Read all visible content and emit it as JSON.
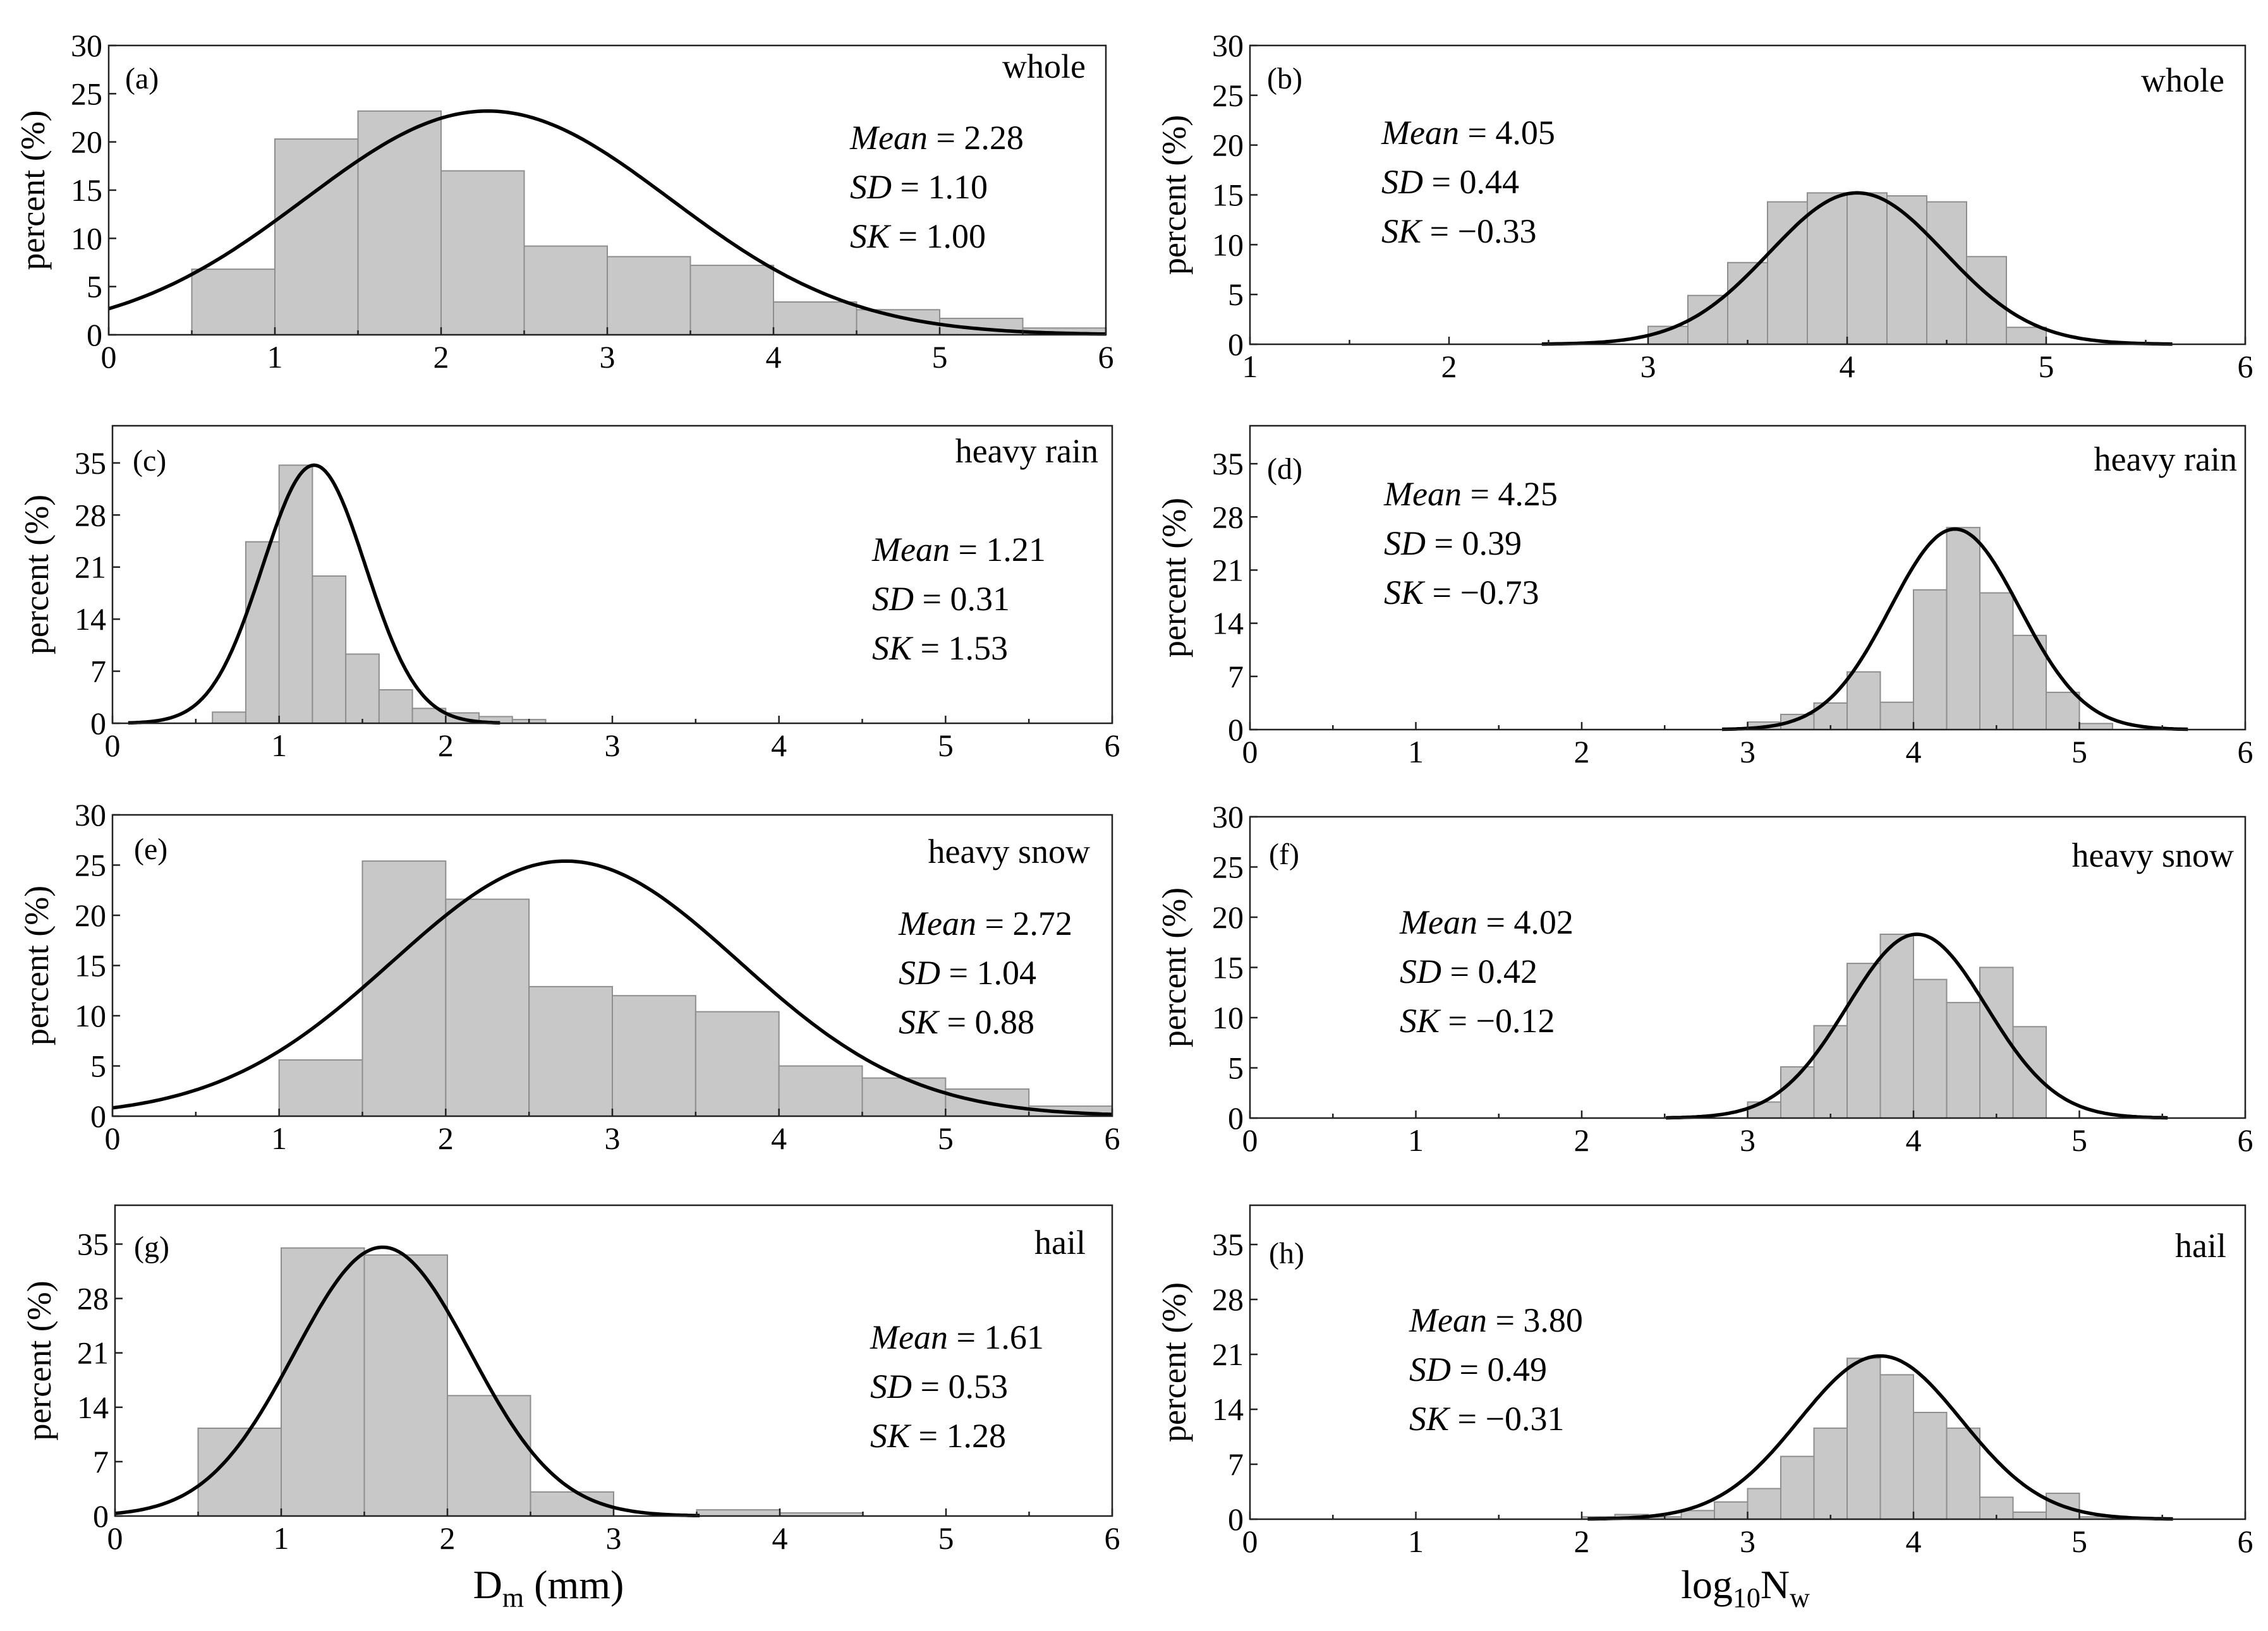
{
  "chart_data": [
    {
      "id": "a",
      "panel_label": "(a)",
      "category": "whole",
      "type": "bar",
      "title": "",
      "xlabel": "",
      "ylabel": "percent (%)",
      "xlim": [
        0,
        6
      ],
      "ylim": [
        0,
        30
      ],
      "xticks": [
        "0",
        "1",
        "2",
        "3",
        "4",
        "5",
        "6"
      ],
      "yticks": [
        "0",
        "5",
        "10",
        "15",
        "20",
        "25",
        "30"
      ],
      "bins": [
        [
          0.5,
          1.0
        ],
        [
          1.0,
          1.5
        ],
        [
          1.5,
          2.0
        ],
        [
          2.0,
          2.5
        ],
        [
          2.5,
          3.0
        ],
        [
          3.0,
          3.5
        ],
        [
          3.5,
          4.0
        ],
        [
          4.0,
          4.5
        ],
        [
          4.5,
          5.0
        ],
        [
          5.0,
          5.5
        ],
        [
          5.5,
          6.0
        ]
      ],
      "values": [
        6.8,
        20.3,
        23.2,
        17.0,
        9.2,
        8.1,
        7.2,
        3.4,
        2.6,
        1.7,
        0.7
      ],
      "fit": {
        "mean": 2.28,
        "sd": 1.1,
        "peak": 23.2
      },
      "stats": {
        "mean_label": "Mean",
        "mean": "= 2.28",
        "sd_label": "SD",
        "sd": "= 1.10",
        "sk_label": "SK",
        "sk": "= 1.00"
      }
    },
    {
      "id": "b",
      "panel_label": "(b)",
      "category": "whole",
      "type": "bar",
      "title": "",
      "xlabel": "",
      "ylabel": "percent (%)",
      "xlim": [
        1,
        6
      ],
      "ylim": [
        0,
        30
      ],
      "xticks": [
        "1",
        "2",
        "3",
        "4",
        "5",
        "6"
      ],
      "yticks": [
        "0",
        "5",
        "10",
        "15",
        "20",
        "25",
        "30"
      ],
      "bins": [
        [
          3.0,
          3.2
        ],
        [
          3.2,
          3.4
        ],
        [
          3.4,
          3.6
        ],
        [
          3.6,
          3.8
        ],
        [
          3.8,
          4.0
        ],
        [
          4.0,
          4.2
        ],
        [
          4.2,
          4.4
        ],
        [
          4.4,
          4.6
        ],
        [
          4.6,
          4.8
        ],
        [
          4.8,
          5.0
        ]
      ],
      "values": [
        1.8,
        4.9,
        8.2,
        14.3,
        15.2,
        15.2,
        14.9,
        14.3,
        8.8,
        1.7
      ],
      "fit": {
        "mean": 4.05,
        "sd": 0.44,
        "peak": 15.2
      },
      "stats": {
        "mean_label": "Mean",
        "mean": "= 4.05",
        "sd_label": "SD",
        "sd": "= 0.44",
        "sk_label": "SK",
        "sk": "= −0.33"
      }
    },
    {
      "id": "c",
      "panel_label": "(c)",
      "category": "heavy rain",
      "type": "bar",
      "title": "",
      "xlabel": "",
      "ylabel": "percent (%)",
      "xlim": [
        0,
        6
      ],
      "ylim": [
        0,
        40
      ],
      "xticks": [
        "0",
        "1",
        "2",
        "3",
        "4",
        "5",
        "6"
      ],
      "yticks": [
        "0",
        "7",
        "14",
        "21",
        "28",
        "35"
      ],
      "bins": [
        [
          0.6,
          0.8
        ],
        [
          0.8,
          1.0
        ],
        [
          1.0,
          1.2
        ],
        [
          1.2,
          1.4
        ],
        [
          1.4,
          1.6
        ],
        [
          1.6,
          1.8
        ],
        [
          1.8,
          2.0
        ],
        [
          2.0,
          2.2
        ],
        [
          2.2,
          2.4
        ],
        [
          2.4,
          2.6
        ]
      ],
      "values": [
        1.5,
        24.4,
        34.7,
        19.8,
        9.3,
        4.5,
        2.0,
        1.4,
        0.9,
        0.5
      ],
      "fit": {
        "mean": 1.21,
        "sd": 0.31,
        "peak": 34.7
      },
      "stats": {
        "mean_label": "Mean",
        "mean": "= 1.21",
        "sd_label": "SD",
        "sd": "= 0.31",
        "sk_label": "SK",
        "sk": "= 1.53"
      }
    },
    {
      "id": "d",
      "panel_label": "(d)",
      "category": "heavy rain",
      "type": "bar",
      "title": "",
      "xlabel": "",
      "ylabel": "percent (%)",
      "xlim": [
        0,
        6
      ],
      "ylim": [
        0,
        40
      ],
      "xticks": [
        "0",
        "1",
        "2",
        "3",
        "4",
        "5",
        "6"
      ],
      "yticks": [
        "0",
        "7",
        "14",
        "21",
        "28",
        "35"
      ],
      "bins": [
        [
          3.0,
          3.2
        ],
        [
          3.2,
          3.4
        ],
        [
          3.4,
          3.6
        ],
        [
          3.6,
          3.8
        ],
        [
          3.8,
          4.0
        ],
        [
          4.0,
          4.2
        ],
        [
          4.2,
          4.4
        ],
        [
          4.4,
          4.6
        ],
        [
          4.6,
          4.8
        ],
        [
          4.8,
          5.0
        ],
        [
          5.0,
          5.2
        ]
      ],
      "values": [
        1.0,
        2.0,
        3.5,
        7.6,
        3.6,
        18.4,
        26.6,
        18.0,
        12.4,
        4.9,
        0.8
      ],
      "fit": {
        "mean": 4.25,
        "sd": 0.39,
        "peak": 26.4
      },
      "stats": {
        "mean_label": "Mean",
        "mean": "= 4.25",
        "sd_label": "SD",
        "sd": "= 0.39",
        "sk_label": "SK",
        "sk": "= −0.73"
      }
    },
    {
      "id": "e",
      "panel_label": "(e)",
      "category": "heavy snow",
      "type": "bar",
      "title": "",
      "xlabel": "",
      "ylabel": "percent (%)",
      "xlim": [
        0,
        6
      ],
      "ylim": [
        0,
        30
      ],
      "xticks": [
        "0",
        "1",
        "2",
        "3",
        "4",
        "5",
        "6"
      ],
      "yticks": [
        "0",
        "5",
        "10",
        "15",
        "20",
        "25",
        "30"
      ],
      "bins": [
        [
          1.0,
          1.5
        ],
        [
          1.5,
          2.0
        ],
        [
          2.0,
          2.5
        ],
        [
          2.5,
          3.0
        ],
        [
          3.0,
          3.5
        ],
        [
          3.5,
          4.0
        ],
        [
          4.0,
          4.5
        ],
        [
          4.5,
          5.0
        ],
        [
          5.0,
          5.5
        ],
        [
          5.5,
          6.0
        ]
      ],
      "values": [
        5.6,
        25.4,
        21.6,
        12.9,
        12.0,
        10.4,
        5.0,
        3.8,
        2.7,
        1.0
      ],
      "fit": {
        "mean": 2.72,
        "sd": 1.04,
        "peak": 25.4
      },
      "stats": {
        "mean_label": "Mean",
        "mean": "= 2.72",
        "sd_label": "SD",
        "sd": "= 1.04",
        "sk_label": "SK",
        "sk": "= 0.88"
      }
    },
    {
      "id": "f",
      "panel_label": "(f)",
      "category": "heavy snow",
      "type": "bar",
      "title": "",
      "xlabel": "",
      "ylabel": "percent (%)",
      "xlim": [
        0,
        6
      ],
      "ylim": [
        0,
        30
      ],
      "xticks": [
        "0",
        "1",
        "2",
        "3",
        "4",
        "5",
        "6"
      ],
      "yticks": [
        "0",
        "5",
        "10",
        "15",
        "20",
        "25",
        "30"
      ],
      "bins": [
        [
          3.0,
          3.2
        ],
        [
          3.2,
          3.4
        ],
        [
          3.4,
          3.6
        ],
        [
          3.6,
          3.8
        ],
        [
          3.8,
          4.0
        ],
        [
          4.0,
          4.2
        ],
        [
          4.2,
          4.4
        ],
        [
          4.4,
          4.6
        ],
        [
          4.6,
          4.8
        ]
      ],
      "values": [
        1.6,
        5.1,
        9.2,
        15.4,
        18.3,
        13.8,
        11.5,
        15.0,
        9.1
      ],
      "fit": {
        "mean": 4.02,
        "sd": 0.42,
        "peak": 18.3
      },
      "stats": {
        "mean_label": "Mean",
        "mean": "= 4.02",
        "sd_label": "SD",
        "sd": "= 0.42",
        "sk_label": "SK",
        "sk": "= −0.12"
      }
    },
    {
      "id": "g",
      "panel_label": "(g)",
      "category": "hail",
      "type": "bar",
      "title": "",
      "xlabel": "D_m (mm)",
      "ylabel": "percent (%)",
      "xlim": [
        0,
        6
      ],
      "ylim": [
        0,
        40
      ],
      "xticks": [
        "0",
        "1",
        "2",
        "3",
        "4",
        "5",
        "6"
      ],
      "yticks": [
        "0",
        "7",
        "14",
        "21",
        "28",
        "35"
      ],
      "bins": [
        [
          0.5,
          1.0
        ],
        [
          1.0,
          1.5
        ],
        [
          1.5,
          2.0
        ],
        [
          2.0,
          2.5
        ],
        [
          2.5,
          3.0
        ],
        [
          3.5,
          4.0
        ],
        [
          4.0,
          4.5
        ]
      ],
      "values": [
        11.3,
        34.5,
        33.6,
        15.5,
        3.1,
        0.8,
        0.4
      ],
      "fit": {
        "mean": 1.61,
        "sd": 0.53,
        "peak": 34.6
      },
      "stats": {
        "mean_label": "Mean",
        "mean": "= 1.61",
        "sd_label": "SD",
        "sd": "= 0.53",
        "sk_label": "SK",
        "sk": "= 1.28"
      }
    },
    {
      "id": "h",
      "panel_label": "(h)",
      "category": "hail",
      "type": "bar",
      "title": "",
      "xlabel": "log10Nw",
      "ylabel": "percent (%)",
      "xlim": [
        0,
        6
      ],
      "ylim": [
        0,
        40
      ],
      "xticks": [
        "0",
        "1",
        "2",
        "3",
        "4",
        "5",
        "6"
      ],
      "yticks": [
        "0",
        "7",
        "14",
        "21",
        "28",
        "35"
      ],
      "bins": [
        [
          2.0,
          2.2
        ],
        [
          2.2,
          2.4
        ],
        [
          2.4,
          2.6
        ],
        [
          2.6,
          2.8
        ],
        [
          2.8,
          3.0
        ],
        [
          3.0,
          3.2
        ],
        [
          3.2,
          3.4
        ],
        [
          3.4,
          3.6
        ],
        [
          3.6,
          3.8
        ],
        [
          3.8,
          4.0
        ],
        [
          4.0,
          4.2
        ],
        [
          4.2,
          4.4
        ],
        [
          4.4,
          4.6
        ],
        [
          4.6,
          4.8
        ],
        [
          4.8,
          5.0
        ],
        [
          5.0,
          5.2
        ]
      ],
      "values": [
        0.3,
        0.6,
        0.3,
        1.1,
        2.2,
        3.9,
        8.0,
        11.6,
        20.5,
        18.4,
        13.6,
        11.6,
        2.8,
        0.9,
        3.3,
        0.3
      ],
      "fit": {
        "mean": 3.8,
        "sd": 0.49,
        "peak": 20.8
      },
      "stats": {
        "mean_label": "Mean",
        "mean": "= 3.80",
        "sd_label": "SD",
        "sd": "= 0.49",
        "sk_label": "SK",
        "sk": "= −0.31"
      }
    }
  ],
  "axis_titles": {
    "left_x_main": "D",
    "left_x_sub": "m",
    "left_x_unit": " (mm)",
    "right_x_main": "log",
    "right_x_sub": "10",
    "right_x_tail": "N",
    "right_x_sub2": "w"
  }
}
